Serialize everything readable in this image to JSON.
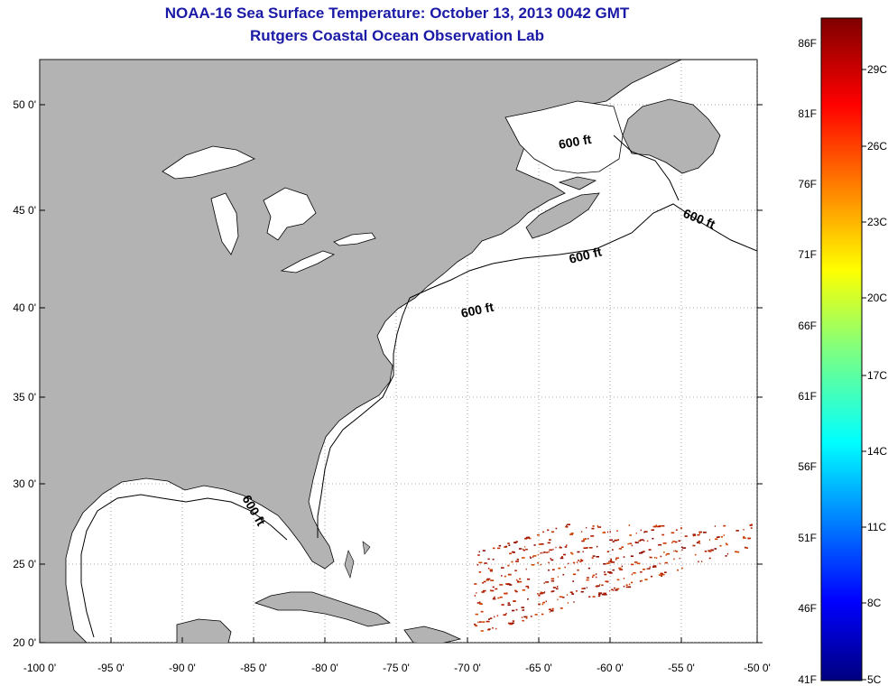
{
  "title_line1": "NOAA-16 Sea Surface Temperature:  October 13, 2013 0042 GMT",
  "title_line2": "Rutgers Coastal Ocean Observation Lab",
  "lat_ticks": [
    "50 0'",
    "45 0'",
    "40 0'",
    "35 0'",
    "30 0'",
    "25 0'",
    "20 0'"
  ],
  "lon_ticks": [
    "-100 0'",
    "-95 0'",
    "-90 0'",
    "-85 0'",
    "-80 0'",
    "-75 0'",
    "-70 0'",
    "-65 0'",
    "-60 0'",
    "-55 0'",
    "-50 0'"
  ],
  "isobath_label": "600 ft",
  "colorbar": {
    "f_labels": [
      "86F",
      "81F",
      "76F",
      "71F",
      "66F",
      "61F",
      "56F",
      "51F",
      "46F",
      "41F"
    ],
    "c_labels": [
      "29C",
      "26C",
      "23C",
      "20C",
      "17C",
      "14C",
      "11C",
      "8C",
      "5C"
    ]
  },
  "colors": {
    "land": "#b3b3b3",
    "title": "#1a1aa6",
    "grid": "#888888"
  }
}
